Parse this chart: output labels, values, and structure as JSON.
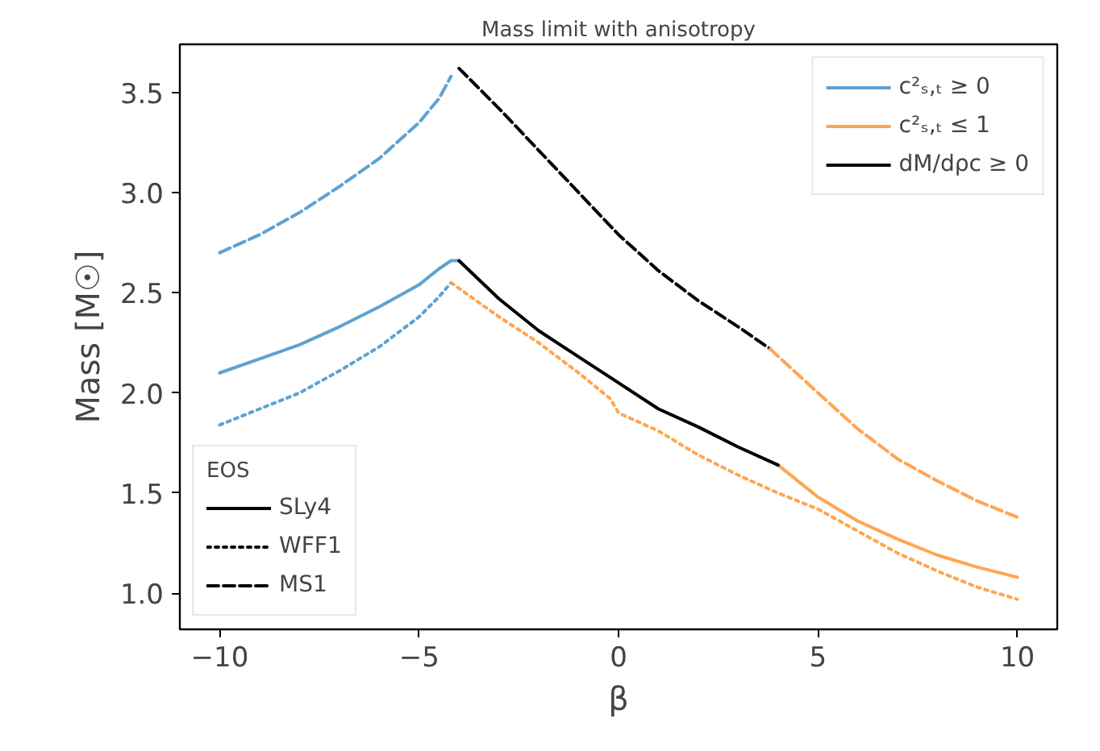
{
  "chart_data": {
    "type": "line",
    "title": "Mass limit with anisotropy",
    "xlabel": "β",
    "ylabel": "Mass [M☉]",
    "legend_title": "EOS",
    "xlim": [
      -11,
      11
    ],
    "xticks": [
      {
        "value": -10,
        "label": "−10"
      },
      {
        "value": -5,
        "label": "−5"
      },
      0,
      5,
      10
    ],
    "ylim": [
      0.82,
      3.74
    ],
    "yticks": [
      {
        "value": 1,
        "label": "1.0"
      },
      1.5,
      {
        "value": 2,
        "label": "2.0"
      },
      2.5,
      {
        "value": 3,
        "label": "3.0"
      },
      3.5
    ],
    "grid": false,
    "legend": [
      "top right",
      "bottom left"
    ],
    "series": [
      {
        "name": "c²ₛ,ₜ ≥ 0",
        "color": "#5fa2d0",
        "line_style": "solid",
        "x": [
          -10,
          -9,
          -8,
          -7,
          -6,
          -5,
          -4.5,
          -4.2,
          -4
        ],
        "values": [
          2.1,
          2.17,
          2.24,
          2.33,
          2.43,
          2.54,
          2.62,
          2.66,
          2.66
        ]
      },
      {
        "name": "c²ₛ,ₜ ≤ 1",
        "color": "#ffa552",
        "line_style": "solid",
        "x": [
          4,
          5,
          6,
          7,
          8,
          9,
          10
        ],
        "values": [
          1.64,
          1.48,
          1.36,
          1.27,
          1.19,
          1.13,
          1.08
        ]
      },
      {
        "name": "dM/dρc ≥ 0",
        "color": "#000000",
        "line_style": "solid",
        "x": [
          -4,
          -3,
          -2,
          -1,
          0,
          1,
          2,
          3,
          4
        ],
        "values": [
          2.66,
          2.47,
          2.31,
          2.18,
          2.05,
          1.92,
          1.83,
          1.73,
          1.64
        ]
      },
      {
        "color": "#5fa2d0",
        "line_style": "dotted",
        "x": [
          -10,
          -9,
          -8,
          -7,
          -6,
          -5,
          -4.5,
          -4.2
        ],
        "values": [
          1.84,
          1.92,
          2.0,
          2.11,
          2.23,
          2.38,
          2.48,
          2.55
        ]
      },
      {
        "color": "#ffa552",
        "line_style": "dotted",
        "x": [
          -4.2,
          -3,
          -2,
          -1,
          -0.2,
          0,
          1,
          2,
          3,
          4,
          5,
          6,
          7,
          8,
          9,
          10
        ],
        "values": [
          2.55,
          2.38,
          2.25,
          2.1,
          1.97,
          1.9,
          1.81,
          1.69,
          1.59,
          1.5,
          1.42,
          1.31,
          1.2,
          1.11,
          1.03,
          0.97
        ]
      },
      {
        "color": "#5fa2d0",
        "line_style": "dashed",
        "x": [
          -10,
          -9,
          -8,
          -7,
          -6,
          -5,
          -4.5,
          -4.2
        ],
        "values": [
          2.7,
          2.79,
          2.9,
          3.03,
          3.17,
          3.35,
          3.47,
          3.58
        ]
      },
      {
        "color": "#000000",
        "line_style": "dashed",
        "x": [
          -4,
          -3,
          -2,
          -1,
          0,
          1,
          2,
          3,
          3.8
        ],
        "values": [
          3.62,
          3.42,
          3.21,
          3.0,
          2.79,
          2.61,
          2.46,
          2.33,
          2.22
        ]
      },
      {
        "color": "#ffa552",
        "line_style": "dashed",
        "x": [
          3.8,
          5,
          6,
          7,
          8,
          9,
          10
        ],
        "values": [
          2.22,
          2.0,
          1.82,
          1.67,
          1.56,
          1.46,
          1.38
        ]
      },
      {
        "name": "SLy4",
        "color": "#000000",
        "line_style": "solid"
      },
      {
        "name": "WFF1",
        "color": "#000000",
        "line_style": "dotted"
      },
      {
        "name": "MS1",
        "color": "#000000",
        "line_style": "dashed"
      }
    ]
  }
}
